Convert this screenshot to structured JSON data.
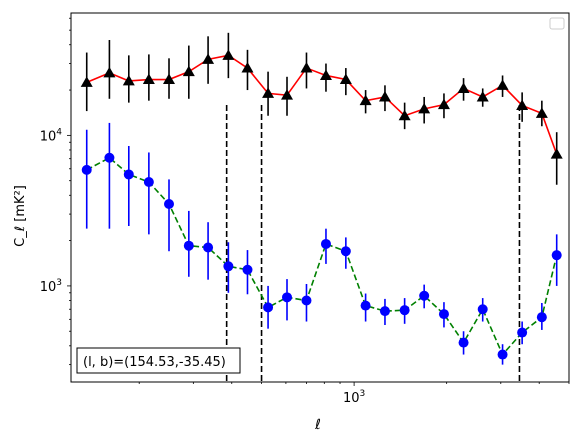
{
  "chart_data": {
    "type": "scatter",
    "xlabel": "ℓ",
    "ylabel": "C_ℓ [mK²]",
    "xscale": "log",
    "yscale": "log",
    "xlim": [
      120,
      5000
    ],
    "ylim": [
      230,
      65000
    ],
    "x_ticks": [
      {
        "value": 1000,
        "base": "10",
        "exp": "3"
      }
    ],
    "y_ticks": [
      {
        "value": 1000,
        "base": "10",
        "exp": "3"
      },
      {
        "value": 10000,
        "base": "10",
        "exp": "4"
      }
    ],
    "grid": false,
    "legend": {
      "position": "top-right",
      "entries": []
    },
    "annotation": "(l, b)=(154.53,-35.45)",
    "vertical_lines": [
      385,
      500,
      3450
    ],
    "series": [
      {
        "marker": "triangle",
        "marker_color": "#000000",
        "line_color": "#ff0000",
        "line_style": "solid",
        "x": [
          135,
          160,
          185,
          215,
          250,
          290,
          335,
          390,
          450,
          525,
          605,
          700,
          810,
          940,
          1090,
          1260,
          1460,
          1690,
          1960,
          2270,
          2620,
          3040,
          3520,
          4080,
          4560
        ],
        "y": [
          22500,
          26000,
          23000,
          23500,
          23500,
          26500,
          32000,
          34000,
          28000,
          19000,
          18500,
          28000,
          25000,
          23500,
          17000,
          18000,
          13500,
          15000,
          16000,
          20500,
          18000,
          21500,
          15800,
          14000,
          7500
        ],
        "err_low": [
          8000,
          8500,
          6500,
          6500,
          6000,
          9000,
          10000,
          10000,
          8000,
          5500,
          5000,
          7500,
          5500,
          5000,
          3000,
          3500,
          2500,
          3000,
          3000,
          3500,
          2500,
          3500,
          3500,
          2500,
          2800
        ],
        "err_high": [
          13000,
          17000,
          11000,
          11000,
          9000,
          13000,
          13500,
          14000,
          9000,
          7500,
          6000,
          7500,
          5000,
          4500,
          3000,
          3500,
          3000,
          3000,
          3000,
          3500,
          2500,
          3500,
          3500,
          3000,
          3000
        ]
      },
      {
        "marker": "circle",
        "marker_color": "#0000ff",
        "line_color": "#008000",
        "line_style": "dashed",
        "x": [
          135,
          160,
          185,
          215,
          250,
          290,
          335,
          390,
          450,
          525,
          605,
          700,
          810,
          940,
          1090,
          1260,
          1460,
          1690,
          1960,
          2270,
          2620,
          3040,
          3520,
          4080,
          4560
        ],
        "y": [
          5900,
          7100,
          5500,
          4900,
          3500,
          1850,
          1800,
          1350,
          1280,
          720,
          840,
          800,
          1900,
          1700,
          740,
          680,
          690,
          860,
          650,
          420,
          700,
          350,
          490,
          620,
          1600
        ],
        "err_low": [
          3500,
          4700,
          3000,
          2700,
          1800,
          700,
          700,
          450,
          400,
          200,
          250,
          220,
          500,
          400,
          160,
          130,
          130,
          150,
          120,
          70,
          120,
          50,
          80,
          110,
          600
        ],
        "err_high": [
          5000,
          5000,
          3000,
          2800,
          1600,
          1300,
          850,
          600,
          450,
          280,
          270,
          230,
          500,
          400,
          150,
          140,
          140,
          160,
          130,
          80,
          130,
          60,
          90,
          150,
          600
        ]
      }
    ]
  }
}
